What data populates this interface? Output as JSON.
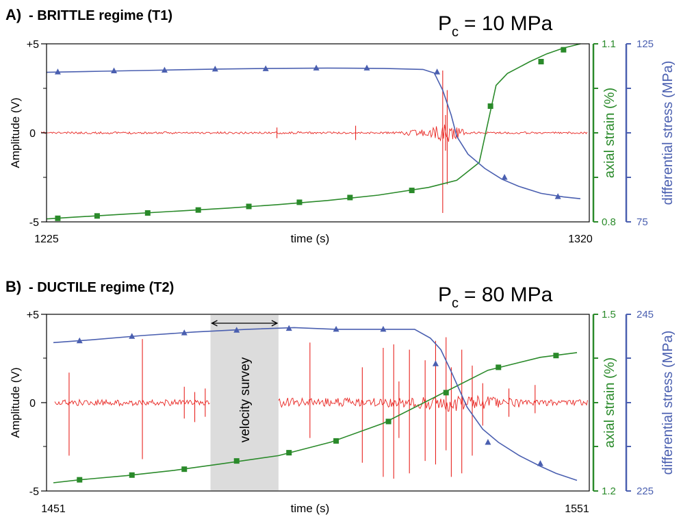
{
  "colors": {
    "strain": "#2a8a2a",
    "stress": "#4a5fb0",
    "signal": "#e8231f",
    "survey_band": "#dcdcdc"
  },
  "chart_data": [
    {
      "type": "line",
      "panel_prefix": "A)",
      "title": "- BRITTLE regime (T1)",
      "pressure_symbol": "P",
      "pressure_subscript": "c",
      "pressure_value": "= 10 MPa",
      "xlabel": "time (s)",
      "xlim": [
        1225,
        1320
      ],
      "x_tick_labels": [
        "1225",
        "1320"
      ],
      "left_axis": {
        "label": "Amplitude (V)",
        "ylim": [
          -5,
          5
        ],
        "tick_labels": [
          "+5",
          "0",
          "-5"
        ]
      },
      "strain_axis": {
        "label": "axial strain (%)",
        "ylim": [
          0.8,
          1.1
        ],
        "tick_labels": [
          "1.1",
          "0.8"
        ]
      },
      "stress_axis": {
        "label": "differential stress (MPa)",
        "ylim": [
          75,
          125
        ],
        "tick_labels": [
          "125",
          "75"
        ]
      },
      "series": [
        {
          "name": "axial strain",
          "axis": "strain",
          "x": [
            1225,
            1230,
            1239,
            1248,
            1257,
            1266,
            1275,
            1284,
            1293,
            1298,
            1302,
            1305,
            1307,
            1309,
            1311,
            1314,
            1317,
            1320
          ],
          "y": [
            0.805,
            0.808,
            0.813,
            0.818,
            0.823,
            0.829,
            0.836,
            0.845,
            0.858,
            0.87,
            0.9,
            1.03,
            1.05,
            1.06,
            1.07,
            1.083,
            1.093,
            1.1
          ],
          "marker_x": [
            1227,
            1234,
            1243,
            1252,
            1261,
            1270,
            1279,
            1290,
            1304,
            1313,
            1317
          ],
          "marker_y": [
            0.806,
            0.81,
            0.815,
            0.82,
            0.826,
            0.833,
            0.841,
            0.853,
            0.995,
            1.07,
            1.09
          ]
        },
        {
          "name": "differential stress",
          "axis": "stress",
          "x": [
            1225,
            1235,
            1245,
            1255,
            1265,
            1275,
            1285,
            1292,
            1294,
            1295.5,
            1297,
            1298,
            1300,
            1303,
            1306,
            1309,
            1313,
            1317,
            1320
          ],
          "y": [
            117,
            117.3,
            117.6,
            117.9,
            118.1,
            118.2,
            118.1,
            117.8,
            116.8,
            112,
            105,
            99,
            94,
            90,
            87,
            85,
            83,
            82,
            81.5
          ],
          "marker_x": [
            1227,
            1237,
            1246,
            1255,
            1264,
            1273,
            1282,
            1294.5,
            1306.5,
            1316
          ],
          "marker_y": [
            117.1,
            117.4,
            117.6,
            117.9,
            118,
            118.2,
            118.2,
            117.1,
            87.5,
            82.1
          ]
        }
      ],
      "acoustic_signal": {
        "name": "amplitude",
        "axis": "left",
        "baseline": 0,
        "spikes": [
          {
            "x": 1266,
            "top": 0.3,
            "bottom": -0.3
          },
          {
            "x": 1280,
            "top": 0.4,
            "bottom": -0.4
          },
          {
            "x": 1296,
            "top": 1.0,
            "bottom": -1.0
          },
          {
            "x": 1295.5,
            "top": 3.5,
            "bottom": -4.5
          },
          {
            "x": 1296.3,
            "top": 2.4,
            "bottom": -2.9
          }
        ]
      }
    },
    {
      "type": "line",
      "panel_prefix": "B)",
      "title": "- DUCTILE regime (T2)",
      "pressure_symbol": "P",
      "pressure_subscript": "c",
      "pressure_value": "= 80 MPa",
      "xlabel": "time (s)",
      "xlim": [
        1451,
        1551
      ],
      "x_tick_labels": [
        "1451",
        "1551"
      ],
      "left_axis": {
        "label": "Amplitude (V)",
        "ylim": [
          -5,
          5
        ],
        "tick_labels": [
          "+5",
          "0",
          "-5"
        ]
      },
      "strain_axis": {
        "label": "axial strain (%)",
        "ylim": [
          1.2,
          1.5
        ],
        "tick_labels": [
          "1.5",
          "1.2"
        ]
      },
      "stress_axis": {
        "label": "differential stress (MPa)",
        "ylim": [
          225,
          245
        ],
        "tick_labels": [
          "245",
          "225"
        ]
      },
      "annotation": {
        "label": "velocity survey",
        "x_range": [
          1481,
          1494
        ]
      },
      "series": [
        {
          "name": "axial strain",
          "axis": "strain",
          "x": [
            1451,
            1456,
            1465,
            1474,
            1483,
            1494,
            1504,
            1514,
            1524,
            1534,
            1544,
            1551
          ],
          "y": [
            1.214,
            1.219,
            1.226,
            1.235,
            1.246,
            1.26,
            1.283,
            1.315,
            1.36,
            1.405,
            1.427,
            1.435
          ],
          "marker_x": [
            1456,
            1466,
            1476,
            1486,
            1496,
            1505,
            1515,
            1526,
            1536,
            1547
          ],
          "marker_y": [
            1.219,
            1.227,
            1.237,
            1.251,
            1.265,
            1.285,
            1.318,
            1.367,
            1.41,
            1.43
          ]
        },
        {
          "name": "differential stress",
          "axis": "stress",
          "x": [
            1451,
            1458,
            1468,
            1478,
            1488,
            1497,
            1505,
            1513,
            1520,
            1523,
            1525,
            1527,
            1530,
            1533,
            1536,
            1540,
            1544,
            1547,
            1551
          ],
          "y": [
            241.8,
            242.1,
            242.6,
            243,
            243.3,
            243.5,
            243.3,
            243.3,
            243.3,
            242.3,
            241,
            238.5,
            234.5,
            232,
            230.5,
            229,
            227.8,
            227,
            226.2
          ],
          "marker_x": [
            1456,
            1466,
            1476,
            1486,
            1496,
            1505,
            1514,
            1524,
            1534,
            1544
          ],
          "marker_y": [
            242,
            242.5,
            242.9,
            243.2,
            243.4,
            243.3,
            243.3,
            239.4,
            230.5,
            228.1
          ]
        }
      ],
      "acoustic_signal": {
        "name": "amplitude",
        "axis": "left",
        "baseline": 0,
        "gap": [
          1481,
          1494
        ],
        "spikes": [
          {
            "x": 1454,
            "top": 1.7,
            "bottom": -3.0
          },
          {
            "x": 1468,
            "top": 3.6,
            "bottom": -3.2
          },
          {
            "x": 1476,
            "top": 0.9,
            "bottom": -0.9
          },
          {
            "x": 1478,
            "top": 0.6,
            "bottom": -1.1
          },
          {
            "x": 1480,
            "top": 0.8,
            "bottom": -0.8
          },
          {
            "x": 1500,
            "top": 3.4,
            "bottom": -2.0
          },
          {
            "x": 1510,
            "top": 2.0,
            "bottom": -3.4
          },
          {
            "x": 1514,
            "top": 3.1,
            "bottom": -4.2
          },
          {
            "x": 1516,
            "top": 3.3,
            "bottom": -4.3
          },
          {
            "x": 1517,
            "top": 1.2,
            "bottom": -2.0
          },
          {
            "x": 1519,
            "top": 3.0,
            "bottom": -4.0
          },
          {
            "x": 1522,
            "top": 2.4,
            "bottom": -3.3
          },
          {
            "x": 1524,
            "top": 3.5,
            "bottom": -3.5
          },
          {
            "x": 1526,
            "top": 3.7,
            "bottom": -2.7
          },
          {
            "x": 1527,
            "top": 2.0,
            "bottom": -4.2
          },
          {
            "x": 1529,
            "top": 3.0,
            "bottom": -4.0
          },
          {
            "x": 1531,
            "top": 2.1,
            "bottom": -3.0
          },
          {
            "x": 1533,
            "top": 1.1,
            "bottom": -1.3
          },
          {
            "x": 1538,
            "top": 0.8,
            "bottom": -0.8
          },
          {
            "x": 1543,
            "top": 1.0,
            "bottom": -0.6
          }
        ]
      }
    }
  ]
}
